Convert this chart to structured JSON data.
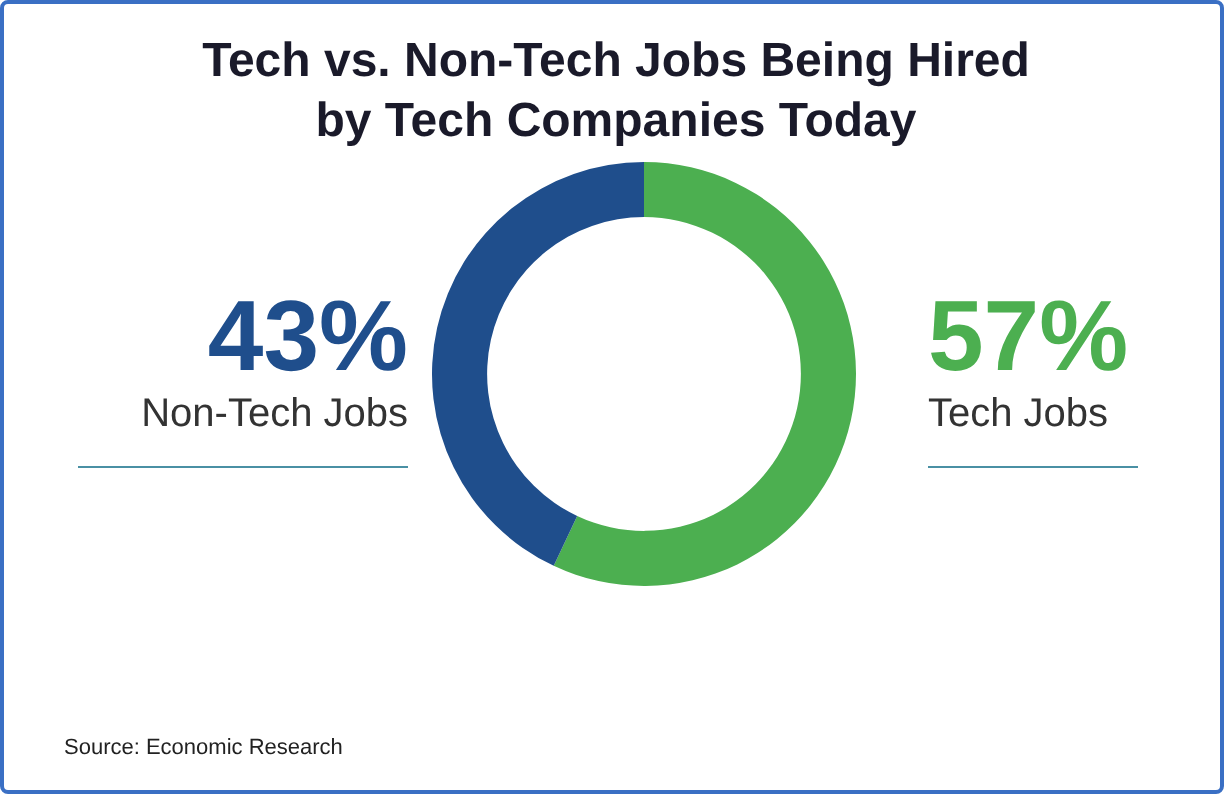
{
  "chart_data": {
    "type": "donut",
    "title": "Tech vs. Non-Tech Jobs Being Hired by Tech Companies Today",
    "categories": [
      "Tech Jobs",
      "Non-Tech Jobs"
    ],
    "values": [
      57,
      43
    ],
    "value_labels": [
      "57%",
      "43%"
    ],
    "colors": [
      "#4caf50",
      "#1f4e8c"
    ],
    "legend": false,
    "annotations": [
      "Source: Economic Research"
    ]
  }
}
